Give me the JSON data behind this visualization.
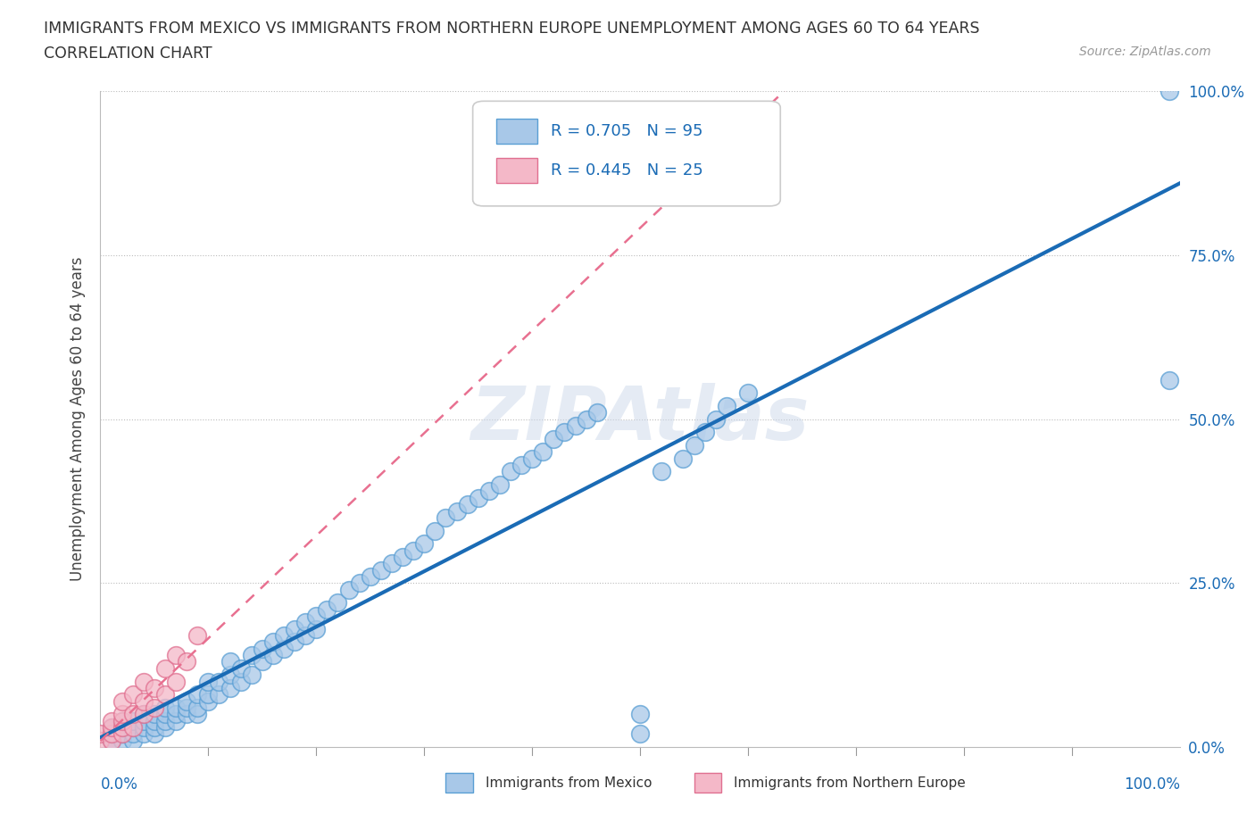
{
  "title_line1": "IMMIGRANTS FROM MEXICO VS IMMIGRANTS FROM NORTHERN EUROPE UNEMPLOYMENT AMONG AGES 60 TO 64 YEARS",
  "title_line2": "CORRELATION CHART",
  "source_text": "Source: ZipAtlas.com",
  "xlabel_left": "Immigrants from Mexico",
  "xlabel_right": "Immigrants from Northern Europe",
  "ylabel": "Unemployment Among Ages 60 to 64 years",
  "xlim": [
    0.0,
    1.0
  ],
  "ylim": [
    0.0,
    1.0
  ],
  "right_yticks": [
    0.0,
    0.25,
    0.5,
    0.75,
    1.0
  ],
  "right_yticklabels": [
    "0.0%",
    "25.0%",
    "50.0%",
    "75.0%",
    "100.0%"
  ],
  "bottom_xtick_left": "0.0%",
  "bottom_xtick_right": "100.0%",
  "watermark": "ZIPAtlas",
  "mexico_color": "#a8c8e8",
  "mexico_edge": "#5a9fd4",
  "northern_europe_color": "#f4b8c8",
  "northern_europe_edge": "#e07090",
  "R_mexico": 0.705,
  "N_mexico": 95,
  "R_northern": 0.445,
  "N_northern": 25,
  "legend_R_color": "#1a6bb5",
  "regression_line_color_mexico": "#1a6bb5",
  "regression_line_color_northern": "#e8a0b0",
  "mexico_x": [
    0.01,
    0.01,
    0.01,
    0.01,
    0.02,
    0.02,
    0.02,
    0.02,
    0.02,
    0.03,
    0.03,
    0.03,
    0.03,
    0.04,
    0.04,
    0.04,
    0.04,
    0.05,
    0.05,
    0.05,
    0.05,
    0.06,
    0.06,
    0.06,
    0.06,
    0.07,
    0.07,
    0.07,
    0.08,
    0.08,
    0.08,
    0.09,
    0.09,
    0.09,
    0.1,
    0.1,
    0.1,
    0.11,
    0.11,
    0.12,
    0.12,
    0.12,
    0.13,
    0.13,
    0.14,
    0.14,
    0.15,
    0.15,
    0.16,
    0.16,
    0.17,
    0.17,
    0.18,
    0.18,
    0.19,
    0.19,
    0.2,
    0.2,
    0.21,
    0.22,
    0.23,
    0.24,
    0.25,
    0.26,
    0.27,
    0.28,
    0.29,
    0.3,
    0.31,
    0.32,
    0.33,
    0.34,
    0.35,
    0.36,
    0.37,
    0.38,
    0.39,
    0.4,
    0.41,
    0.42,
    0.43,
    0.44,
    0.45,
    0.46,
    0.5,
    0.5,
    0.52,
    0.54,
    0.55,
    0.56,
    0.57,
    0.58,
    0.6,
    0.99,
    0.99
  ],
  "mexico_y": [
    0.01,
    0.01,
    0.02,
    0.03,
    0.01,
    0.02,
    0.02,
    0.03,
    0.04,
    0.01,
    0.02,
    0.03,
    0.04,
    0.02,
    0.03,
    0.04,
    0.05,
    0.02,
    0.03,
    0.04,
    0.05,
    0.03,
    0.04,
    0.05,
    0.06,
    0.04,
    0.05,
    0.06,
    0.05,
    0.06,
    0.07,
    0.05,
    0.06,
    0.08,
    0.07,
    0.08,
    0.1,
    0.08,
    0.1,
    0.09,
    0.11,
    0.13,
    0.1,
    0.12,
    0.11,
    0.14,
    0.13,
    0.15,
    0.14,
    0.16,
    0.15,
    0.17,
    0.16,
    0.18,
    0.17,
    0.19,
    0.18,
    0.2,
    0.21,
    0.22,
    0.24,
    0.25,
    0.26,
    0.27,
    0.28,
    0.29,
    0.3,
    0.31,
    0.33,
    0.35,
    0.36,
    0.37,
    0.38,
    0.39,
    0.4,
    0.42,
    0.43,
    0.44,
    0.45,
    0.47,
    0.48,
    0.49,
    0.5,
    0.51,
    0.02,
    0.05,
    0.42,
    0.44,
    0.46,
    0.48,
    0.5,
    0.52,
    0.54,
    1.0,
    0.56
  ],
  "northern_x": [
    0.0,
    0.0,
    0.01,
    0.01,
    0.01,
    0.01,
    0.02,
    0.02,
    0.02,
    0.02,
    0.02,
    0.03,
    0.03,
    0.03,
    0.04,
    0.04,
    0.04,
    0.05,
    0.05,
    0.06,
    0.06,
    0.07,
    0.07,
    0.08,
    0.09
  ],
  "northern_y": [
    0.01,
    0.02,
    0.01,
    0.02,
    0.03,
    0.04,
    0.02,
    0.03,
    0.04,
    0.05,
    0.07,
    0.03,
    0.05,
    0.08,
    0.05,
    0.07,
    0.1,
    0.06,
    0.09,
    0.08,
    0.12,
    0.1,
    0.14,
    0.13,
    0.17
  ]
}
